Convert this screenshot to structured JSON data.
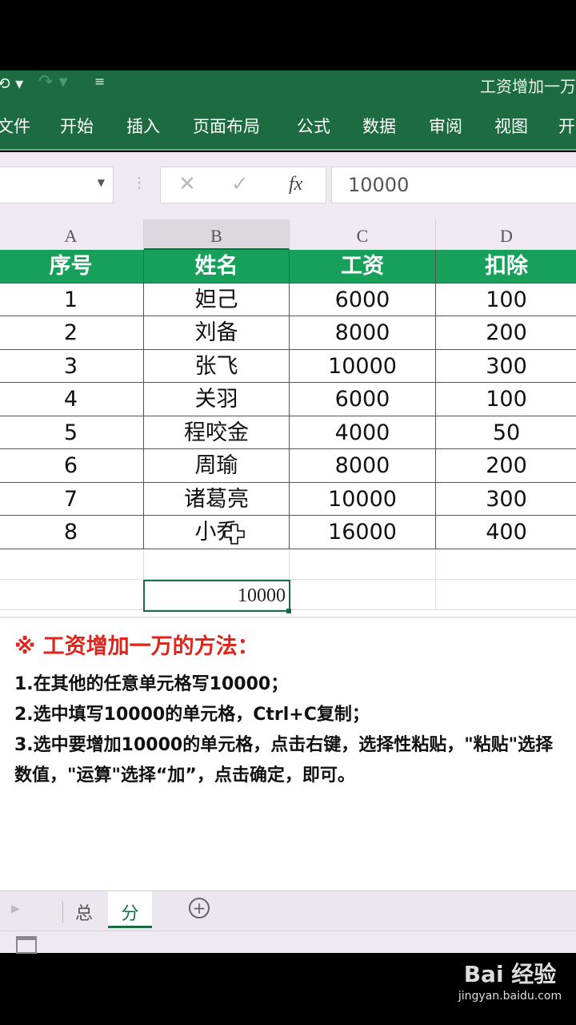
{
  "window": {
    "title": "工资增加一万"
  },
  "ribbon": {
    "tabs": [
      "文件",
      "开始",
      "插入",
      "页面布局",
      "公式",
      "数据",
      "审阅",
      "视图",
      "开"
    ]
  },
  "formula_bar": {
    "value": "10000",
    "fx": "fx"
  },
  "columns": [
    "A",
    "B",
    "C",
    "D"
  ],
  "table": {
    "headers": [
      "序号",
      "姓名",
      "工资",
      "扣除"
    ],
    "rows": [
      [
        "1",
        "妲己",
        "6000",
        "100"
      ],
      [
        "2",
        "刘备",
        "8000",
        "200"
      ],
      [
        "3",
        "张飞",
        "10000",
        "300"
      ],
      [
        "4",
        "关羽",
        "6000",
        "100"
      ],
      [
        "5",
        "程咬金",
        "4000",
        "50"
      ],
      [
        "6",
        "周瑜",
        "8000",
        "200"
      ],
      [
        "7",
        "诸葛亮",
        "10000",
        "300"
      ],
      [
        "8",
        "小乔",
        "16000",
        "400"
      ]
    ]
  },
  "selected_cell": {
    "value": "10000"
  },
  "note": {
    "title": "※ 工资增加一万的方法：",
    "steps": [
      "1.在其他的任意单元格写10000；",
      "2.选中填写10000的单元格，Ctrl+C复制；",
      "3.选中要增加10000的单元格，点击右键，选择性粘贴，\"粘贴\"选择数值，\"运算\"选择“加”，点击确定，即可。"
    ]
  },
  "sheets": [
    "总",
    "分"
  ],
  "active_sheet": "分",
  "watermark": {
    "brand": "Bai 经验",
    "url": "jingyan.baidu.com"
  },
  "colors": {
    "excel_green": "#1d6b40",
    "header_green": "#17a05a",
    "note_red": "#e0241b"
  }
}
